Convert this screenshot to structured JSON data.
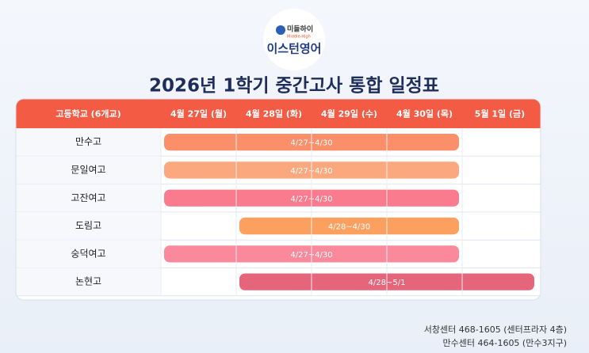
{
  "logo": {
    "brand": "미들하이",
    "brand_en": "Middle-High",
    "name": "이스턴영어"
  },
  "title": "2026년 1학기 중간고사 통합 일정표",
  "table": {
    "columns": [
      "고등학교 (6개교)",
      "4월 27일 (월)",
      "4월 28일 (화)",
      "4월 29일 (수)",
      "4월 30일 (목)",
      "5월 1일 (금)"
    ],
    "rows": [
      {
        "school": "만수고",
        "period": "4/27~4/30",
        "color": "#fa8f69"
      },
      {
        "school": "문일여고",
        "period": "4/27~4/30",
        "color": "#fba87e"
      },
      {
        "school": "고잔여고",
        "period": "4/27~4/30",
        "color": "#f97b8d"
      },
      {
        "school": "도림고",
        "period": "4/28~4/30",
        "color": "#fba05f"
      },
      {
        "school": "숭덕여고",
        "period": "4/27~4/30",
        "color": "#f9899b"
      },
      {
        "school": "논현고",
        "period": "4/28~5/1",
        "color": "#e5657a"
      }
    ]
  },
  "footer": [
    "서창센터 468-1605 (센터프라자 4층)",
    "만수센터 464-1605 (만수3지구)"
  ]
}
